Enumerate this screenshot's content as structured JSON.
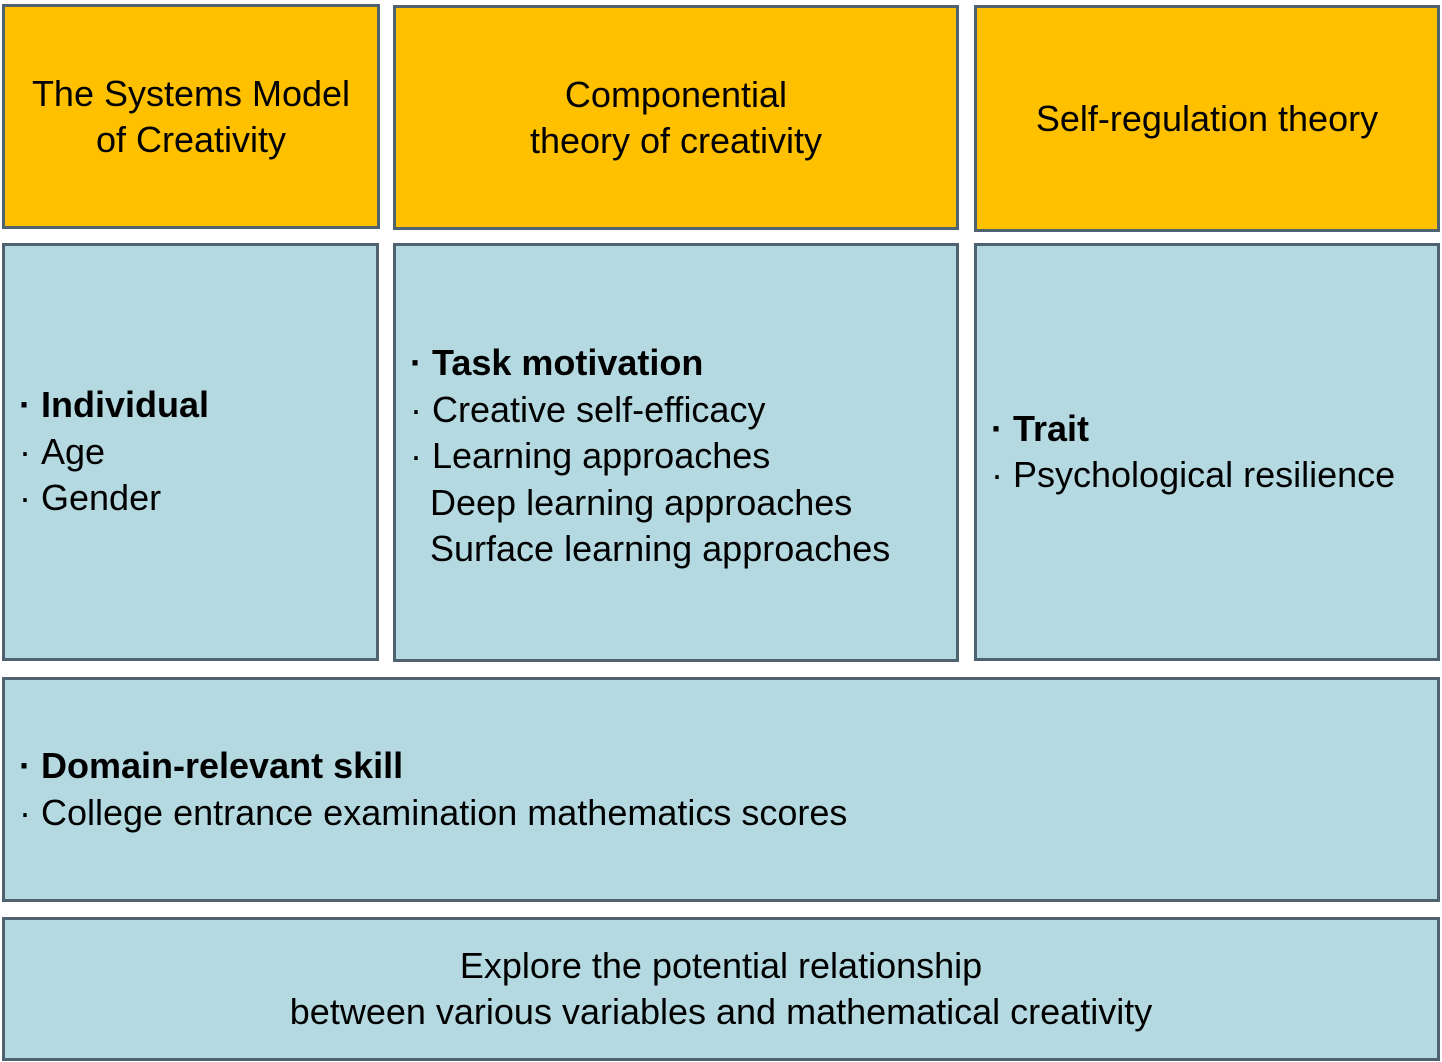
{
  "colors": {
    "header": "#ffc000",
    "body": "#b4d9e1",
    "border": "#4f6270"
  },
  "headers": [
    {
      "line1": "The Systems Model",
      "line2": "of Creativity"
    },
    {
      "line1": "Componential",
      "line2": "theory of creativity"
    },
    {
      "line1": "Self-regulation theory"
    }
  ],
  "bullet": "·",
  "individual": {
    "title": "Individual",
    "items": [
      "Age",
      "Gender"
    ]
  },
  "task": {
    "title": "Task motivation",
    "items": [
      "Creative self-efficacy",
      "Learning approaches"
    ],
    "subitems": [
      "Deep learning approaches",
      "Surface learning approaches"
    ]
  },
  "trait": {
    "title": "Trait",
    "items": [
      "Psychological resilience"
    ]
  },
  "domain": {
    "title": "Domain-relevant skill",
    "items": [
      "College entrance examination mathematics scores"
    ]
  },
  "footer": {
    "line1": "Explore the potential relationship",
    "line2": "between various variables and mathematical creativity"
  }
}
